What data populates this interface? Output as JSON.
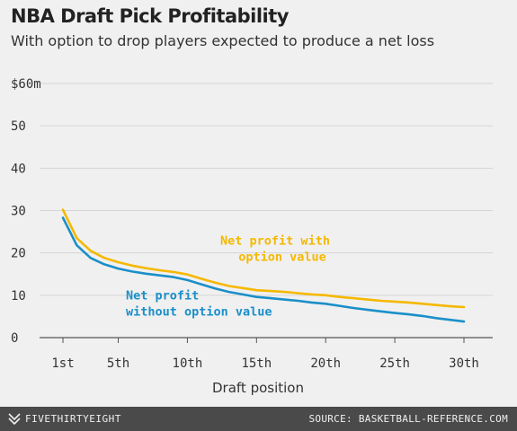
{
  "header": {
    "title": "NBA Draft Pick Profitability",
    "subtitle": "With option to drop players expected to produce a net loss"
  },
  "footer": {
    "brand": "FIVETHIRTYEIGHT",
    "source": "SOURCE: BASKETBALL-REFERENCE.COM"
  },
  "colors": {
    "with_option": "#f5b800",
    "without_option": "#1a8fc9",
    "grid": "#d5d5d5",
    "axis_text": "#333333"
  },
  "chart_data": {
    "type": "line",
    "title": "NBA Draft Pick Profitability",
    "subtitle": "With option to drop players expected to produce a net loss",
    "xlabel": "Draft position",
    "ylabel": "",
    "xlim": [
      1,
      30
    ],
    "ylim": [
      0,
      60
    ],
    "x_ticks": [
      1,
      5,
      10,
      15,
      20,
      25,
      30
    ],
    "x_tick_labels": [
      "1st",
      "5th",
      "10th",
      "15th",
      "20th",
      "25th",
      "30th"
    ],
    "y_ticks": [
      0,
      10,
      20,
      30,
      40,
      50,
      60
    ],
    "y_tick_labels": [
      "0",
      "10",
      "20",
      "30",
      "40",
      "50",
      "$60m"
    ],
    "grid": true,
    "x": [
      1,
      2,
      3,
      4,
      5,
      6,
      7,
      8,
      9,
      10,
      11,
      12,
      13,
      14,
      15,
      16,
      17,
      18,
      19,
      20,
      21,
      22,
      23,
      24,
      25,
      26,
      27,
      28,
      29,
      30
    ],
    "series": [
      {
        "name": "Net profit with option value",
        "color": "#f5b800",
        "values": [
          30.2,
          23.5,
          20.5,
          18.8,
          17.8,
          17.0,
          16.4,
          15.9,
          15.5,
          14.9,
          13.9,
          13.0,
          12.2,
          11.7,
          11.2,
          11.0,
          10.8,
          10.5,
          10.2,
          10.0,
          9.6,
          9.3,
          9.0,
          8.7,
          8.5,
          8.3,
          8.0,
          7.7,
          7.4,
          7.2
        ]
      },
      {
        "name": "Net profit without option value",
        "color": "#1a8fc9",
        "values": [
          28.3,
          21.8,
          18.8,
          17.3,
          16.3,
          15.6,
          15.1,
          14.7,
          14.3,
          13.6,
          12.6,
          11.6,
          10.8,
          10.2,
          9.6,
          9.3,
          9.0,
          8.7,
          8.3,
          8.0,
          7.5,
          7.0,
          6.6,
          6.2,
          5.8,
          5.5,
          5.1,
          4.6,
          4.2,
          3.8
        ]
      }
    ],
    "annotations": [
      {
        "series": 0,
        "lines": [
          "Net profit with",
          "option value"
        ]
      },
      {
        "series": 1,
        "lines": [
          "Net profit",
          "without option value"
        ]
      }
    ]
  }
}
